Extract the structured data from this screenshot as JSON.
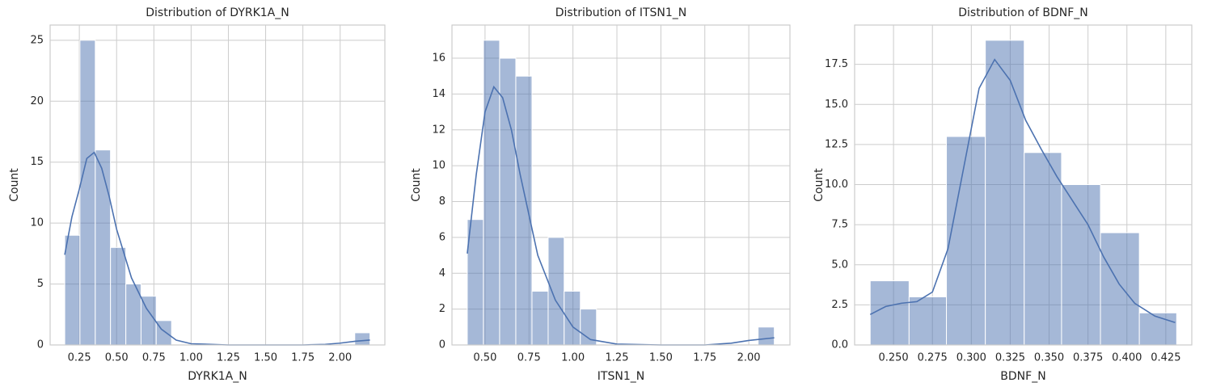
{
  "chart_data": [
    {
      "type": "histogram",
      "title": "Distribution of DYRK1A_N",
      "xlabel": "DYRK1A_N",
      "ylabel": "Count",
      "color": "#4c72b0",
      "grid": true,
      "bins": [
        0.152,
        0.254,
        0.357,
        0.459,
        0.562,
        0.664,
        0.766,
        0.869,
        0.971,
        1.074,
        1.176,
        1.278,
        1.381,
        1.483,
        1.586,
        1.688,
        1.79,
        1.893,
        1.995,
        2.098,
        2.2
      ],
      "values": [
        9,
        25,
        16,
        8,
        5,
        4,
        2,
        0,
        0,
        0,
        0,
        0,
        0,
        0,
        0,
        0,
        0,
        0,
        0,
        1
      ],
      "kde": {
        "x": [
          0.152,
          0.2,
          0.25,
          0.3,
          0.35,
          0.4,
          0.45,
          0.5,
          0.6,
          0.7,
          0.8,
          0.9,
          1.0,
          1.25,
          1.5,
          1.75,
          1.9,
          2.0,
          2.1,
          2.2
        ],
        "values": [
          7.4,
          10.5,
          12.8,
          15.3,
          15.8,
          14.5,
          12.2,
          9.5,
          5.5,
          3,
          1.3,
          0.4,
          0.1,
          0,
          0,
          0,
          0.05,
          0.15,
          0.3,
          0.4
        ]
      },
      "xlim": [
        0.054,
        2.3
      ],
      "ylim": [
        0,
        26.25
      ],
      "xticks": [
        0.25,
        {
          "value": 0.5,
          "label": "0.50"
        },
        0.75,
        {
          "value": 1,
          "label": "1.00"
        },
        1.25,
        {
          "value": 1.5,
          "label": "1.50"
        },
        1.75,
        {
          "value": 2,
          "label": "2.00"
        }
      ],
      "yticks": [
        0,
        5,
        10,
        15,
        20,
        25
      ]
    },
    {
      "type": "histogram",
      "title": "Distribution of ITSN1_N",
      "xlabel": "ITSN1_N",
      "ylabel": "Count",
      "color": "#4c72b0",
      "grid": true,
      "bins": [
        0.399,
        0.491,
        0.583,
        0.675,
        0.767,
        0.859,
        0.95,
        1.042,
        1.134,
        1.226,
        1.318,
        1.41,
        1.502,
        1.594,
        1.686,
        1.778,
        1.869,
        1.961,
        2.053,
        2.145
      ],
      "values": [
        7,
        17,
        16,
        15,
        3,
        6,
        3,
        2,
        0,
        0,
        0,
        0,
        0,
        0,
        0,
        0,
        0,
        0,
        1
      ],
      "kde": {
        "x": [
          0.399,
          0.45,
          0.5,
          0.55,
          0.6,
          0.65,
          0.7,
          0.8,
          0.9,
          1.0,
          1.1,
          1.25,
          1.5,
          1.75,
          1.9,
          2.0,
          2.145
        ],
        "values": [
          5.1,
          9.5,
          13,
          14.4,
          13.8,
          12,
          9.5,
          5,
          2.5,
          1,
          0.3,
          0.05,
          0,
          0,
          0.1,
          0.25,
          0.4
        ]
      },
      "xlim": [
        0.312,
        2.234
      ],
      "ylim": [
        0,
        17.85
      ],
      "xticks": [
        {
          "value": 0.5,
          "label": "0.50"
        },
        0.75,
        {
          "value": 1,
          "label": "1.00"
        },
        1.25,
        {
          "value": 1.5,
          "label": "1.50"
        },
        1.75,
        {
          "value": 2,
          "label": "2.00"
        }
      ],
      "yticks": [
        0,
        2,
        4,
        6,
        8,
        10,
        12,
        14,
        16
      ]
    },
    {
      "type": "histogram",
      "title": "Distribution of BDNF_N",
      "xlabel": "BDNF_N",
      "ylabel": "Count",
      "color": "#4c72b0",
      "grid": true,
      "bins": [
        0.235,
        0.26,
        0.284,
        0.309,
        0.334,
        0.358,
        0.383,
        0.408,
        0.432
      ],
      "values": [
        4,
        3,
        13,
        19,
        12,
        10,
        7,
        2
      ],
      "kde": {
        "x": [
          0.235,
          0.245,
          0.255,
          0.265,
          0.275,
          0.285,
          0.295,
          0.305,
          0.315,
          0.325,
          0.335,
          0.345,
          0.355,
          0.365,
          0.375,
          0.385,
          0.395,
          0.405,
          0.418,
          0.431
        ],
        "values": [
          1.9,
          2.4,
          2.6,
          2.7,
          3.3,
          6,
          11,
          16,
          17.8,
          16.5,
          14,
          12.2,
          10.5,
          9,
          7.5,
          5.5,
          3.8,
          2.6,
          1.8,
          1.4
        ]
      },
      "xlim": [
        0.225,
        0.4417
      ],
      "ylim": [
        0,
        19.95
      ],
      "xticks": [
        {
          "value": 0.25,
          "label": "0.250"
        },
        0.275,
        {
          "value": 0.3,
          "label": "0.300"
        },
        0.325,
        {
          "value": 0.35,
          "label": "0.350"
        },
        0.375,
        {
          "value": 0.4,
          "label": "0.400"
        },
        0.425
      ],
      "yticks": [
        {
          "value": 0,
          "label": "0.0"
        },
        2.5,
        {
          "value": 5,
          "label": "5.0"
        },
        7.5,
        {
          "value": 10,
          "label": "10.0"
        },
        12.5,
        {
          "value": 15,
          "label": "15.0"
        },
        17.5
      ]
    }
  ]
}
